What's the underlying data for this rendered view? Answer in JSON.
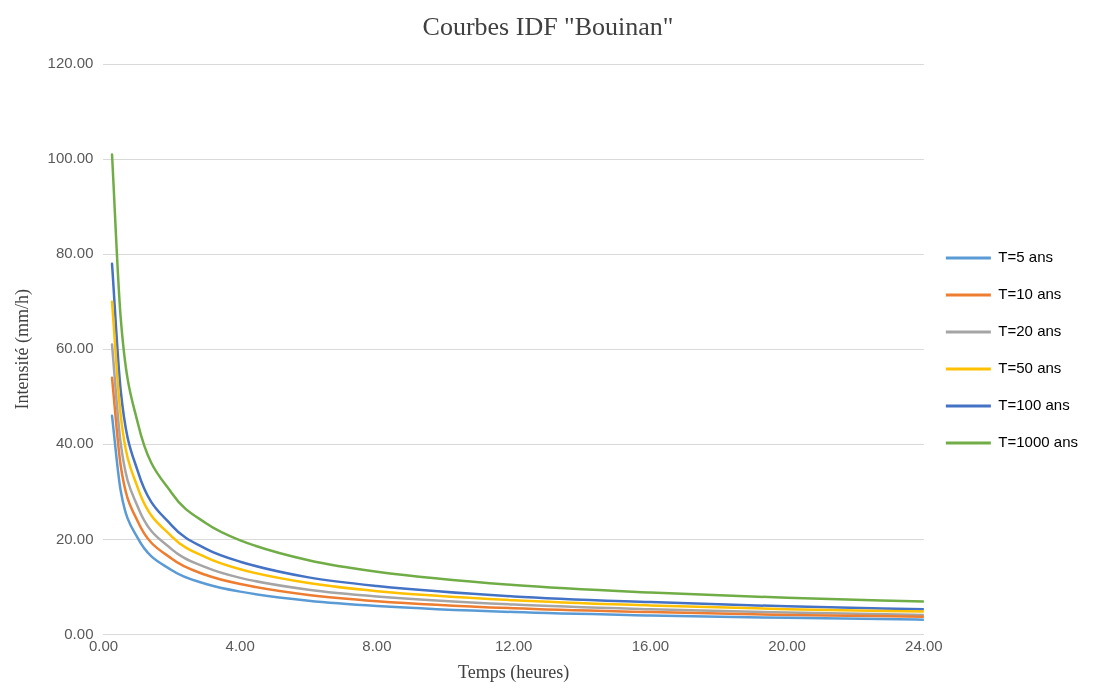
{
  "chart_data": {
    "type": "line",
    "title": "Courbes IDF \"Bouinan\"",
    "xlabel": "Temps (heures)",
    "ylabel": "Intensité (mm/h)",
    "x": [
      0.25,
      0.5,
      1,
      2,
      3,
      4,
      6,
      8,
      12,
      16,
      20,
      24
    ],
    "series": [
      {
        "name": "T=5 ans",
        "color": "#5b9bd5",
        "values": [
          46,
          30.4,
          20.3,
          13.5,
          10.6,
          9.0,
          7.1,
          6.0,
          4.7,
          4.0,
          3.5,
          3.1
        ]
      },
      {
        "name": "T=10 ans",
        "color": "#ed7d31",
        "values": [
          54,
          35.7,
          23.8,
          15.9,
          12.5,
          10.6,
          8.3,
          7.0,
          5.5,
          4.7,
          4.1,
          3.7
        ]
      },
      {
        "name": "T=20 ans",
        "color": "#a5a5a5",
        "values": [
          61,
          40.4,
          26.9,
          17.9,
          14.1,
          11.9,
          9.4,
          8.0,
          6.3,
          5.3,
          4.6,
          4.1
        ]
      },
      {
        "name": "T=50 ans",
        "color": "#ffc000",
        "values": [
          70,
          46.3,
          30.9,
          20.6,
          16.2,
          13.7,
          10.8,
          9.1,
          7.2,
          6.1,
          5.3,
          4.8
        ]
      },
      {
        "name": "T=100 ans",
        "color": "#4472c4",
        "values": [
          78,
          51.6,
          34.4,
          22.9,
          18.0,
          15.3,
          12.0,
          10.2,
          8.0,
          6.8,
          5.9,
          5.3
        ]
      },
      {
        "name": "T=1000 ans",
        "color": "#70ad47",
        "values": [
          101,
          67,
          44.6,
          29.7,
          23.4,
          19.8,
          15.6,
          13.2,
          10.4,
          8.8,
          7.7,
          6.9
        ]
      }
    ],
    "xlim": [
      0,
      24
    ],
    "xticks": [
      {
        "value": 0,
        "label": "0.00"
      },
      {
        "value": 4,
        "label": "4.00"
      },
      {
        "value": 8,
        "label": "8.00"
      },
      {
        "value": 12,
        "label": "12.00"
      },
      {
        "value": 16,
        "label": "16.00"
      },
      {
        "value": 20,
        "label": "20.00"
      },
      {
        "value": 24,
        "label": "24.00"
      }
    ],
    "ylim": [
      0,
      120
    ],
    "yticks": [
      {
        "value": 0,
        "label": "0.00"
      },
      {
        "value": 20,
        "label": "20.00"
      },
      {
        "value": 40,
        "label": "40.00"
      },
      {
        "value": 60,
        "label": "60.00"
      },
      {
        "value": 80,
        "label": "80.00"
      },
      {
        "value": 100,
        "label": "100.00"
      },
      {
        "value": 120,
        "label": "120.00"
      }
    ],
    "grid": "y",
    "legend": "right",
    "marker": "none",
    "line_style": "solid"
  }
}
